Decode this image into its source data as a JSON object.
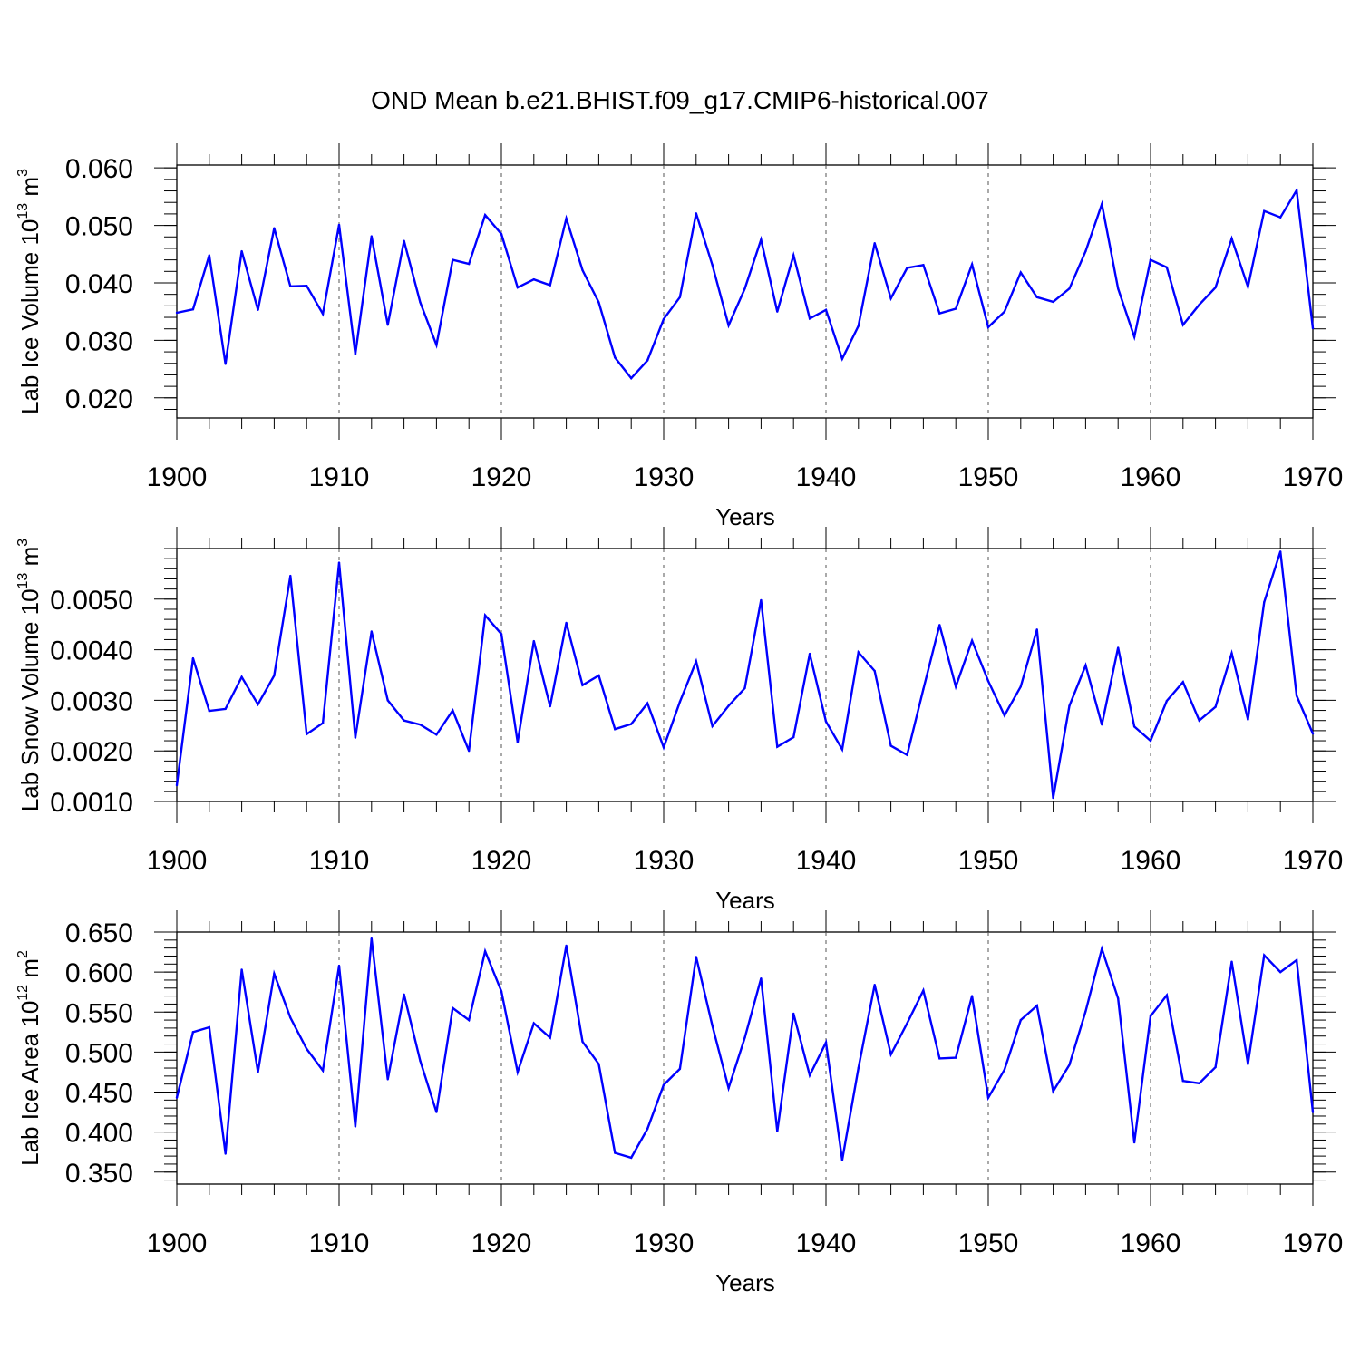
{
  "title": "OND Mean b.e21.BHIST.f09_g17.CMIP6-historical.007",
  "chart_data": [
    {
      "type": "line",
      "ylabel": {
        "text": "Lab Ice Volume 10",
        "sup": "13",
        "unit": " m",
        "unit_sup": "3"
      },
      "xlabel": "Years",
      "xlim": [
        1900,
        1970
      ],
      "ylim": [
        0.0165,
        0.0605
      ],
      "xticks": [
        1900,
        1910,
        1920,
        1930,
        1940,
        1950,
        1960,
        1970
      ],
      "xtick_labels": [
        "1900",
        "1910",
        "1920",
        "1930",
        "1940",
        "1950",
        "1960",
        "1970"
      ],
      "yticks": [
        0.02,
        0.03,
        0.04,
        0.05,
        0.06
      ],
      "ytick_labels": [
        "0.020",
        "0.030",
        "0.040",
        "0.050",
        "0.060"
      ],
      "yminor_step": 0.002,
      "x": [
        1900,
        1901,
        1902,
        1903,
        1904,
        1905,
        1906,
        1907,
        1908,
        1909,
        1910,
        1911,
        1912,
        1913,
        1914,
        1915,
        1916,
        1917,
        1918,
        1919,
        1920,
        1921,
        1922,
        1923,
        1924,
        1925,
        1926,
        1927,
        1928,
        1929,
        1930,
        1931,
        1932,
        1933,
        1934,
        1935,
        1936,
        1937,
        1938,
        1939,
        1940,
        1941,
        1942,
        1943,
        1944,
        1945,
        1946,
        1947,
        1948,
        1949,
        1950,
        1951,
        1952,
        1953,
        1954,
        1955,
        1956,
        1957,
        1958,
        1959,
        1960,
        1961,
        1962,
        1963,
        1964,
        1965,
        1966,
        1967,
        1968,
        1969,
        1970
      ],
      "values": [
        0.0348,
        0.0354,
        0.0448,
        0.0259,
        0.0455,
        0.0353,
        0.0495,
        0.0394,
        0.0395,
        0.0346,
        0.0501,
        0.0276,
        0.0481,
        0.0327,
        0.0473,
        0.0366,
        0.0292,
        0.044,
        0.0433,
        0.0518,
        0.0485,
        0.0392,
        0.0406,
        0.0396,
        0.0512,
        0.0422,
        0.0366,
        0.027,
        0.0234,
        0.0265,
        0.0337,
        0.0375,
        0.0521,
        0.0431,
        0.0326,
        0.039,
        0.0475,
        0.035,
        0.0448,
        0.0338,
        0.0353,
        0.0268,
        0.0325,
        0.0469,
        0.0373,
        0.0426,
        0.0431,
        0.0347,
        0.0355,
        0.0432,
        0.0323,
        0.035,
        0.0418,
        0.0375,
        0.0367,
        0.039,
        0.0455,
        0.0537,
        0.039,
        0.0306,
        0.044,
        0.0427,
        0.0327,
        0.0362,
        0.0392,
        0.0477,
        0.0393,
        0.0525,
        0.0514,
        0.0561,
        0.0321
      ],
      "color": "#0000ff"
    },
    {
      "type": "line",
      "ylabel": {
        "text": "Lab Snow Volume 10",
        "sup": "13",
        "unit": " m",
        "unit_sup": "3"
      },
      "xlabel": "Years",
      "xlim": [
        1900,
        1970
      ],
      "ylim": [
        0.001,
        0.006
      ],
      "xticks": [
        1900,
        1910,
        1920,
        1930,
        1940,
        1950,
        1960,
        1970
      ],
      "xtick_labels": [
        "1900",
        "1910",
        "1920",
        "1930",
        "1940",
        "1950",
        "1960",
        "1970"
      ],
      "yticks": [
        0.001,
        0.002,
        0.003,
        0.004,
        0.005
      ],
      "ytick_labels": [
        "0.0010",
        "0.0020",
        "0.0030",
        "0.0040",
        "0.0050"
      ],
      "yminor_step": 0.0002,
      "x": [
        1900,
        1901,
        1902,
        1903,
        1904,
        1905,
        1906,
        1907,
        1908,
        1909,
        1910,
        1911,
        1912,
        1913,
        1914,
        1915,
        1916,
        1917,
        1918,
        1919,
        1920,
        1921,
        1922,
        1923,
        1924,
        1925,
        1926,
        1927,
        1928,
        1929,
        1930,
        1931,
        1932,
        1933,
        1934,
        1935,
        1936,
        1937,
        1938,
        1939,
        1940,
        1941,
        1942,
        1943,
        1944,
        1945,
        1946,
        1947,
        1948,
        1949,
        1950,
        1951,
        1952,
        1953,
        1954,
        1955,
        1956,
        1957,
        1958,
        1959,
        1960,
        1961,
        1962,
        1963,
        1964,
        1965,
        1966,
        1967,
        1968,
        1969,
        1970
      ],
      "values": [
        0.00132,
        0.00383,
        0.00279,
        0.00283,
        0.00346,
        0.00292,
        0.00349,
        0.00546,
        0.00233,
        0.00255,
        0.00572,
        0.00226,
        0.00436,
        0.003,
        0.0026,
        0.00252,
        0.00232,
        0.0028,
        0.002,
        0.00468,
        0.00431,
        0.00217,
        0.00417,
        0.00288,
        0.00453,
        0.0033,
        0.00349,
        0.00243,
        0.00253,
        0.00294,
        0.00207,
        0.00297,
        0.00377,
        0.00249,
        0.00289,
        0.00324,
        0.00498,
        0.00208,
        0.00227,
        0.00392,
        0.00258,
        0.00203,
        0.00395,
        0.00358,
        0.0021,
        0.00192,
        0.00322,
        0.00449,
        0.00327,
        0.00418,
        0.00338,
        0.0027,
        0.00327,
        0.0044,
        0.00107,
        0.00289,
        0.00369,
        0.00252,
        0.00404,
        0.00248,
        0.0022,
        0.00299,
        0.00336,
        0.0026,
        0.00287,
        0.00393,
        0.00262,
        0.00494,
        0.00594,
        0.00309,
        0.00234
      ],
      "color": "#0000ff"
    },
    {
      "type": "line",
      "ylabel": {
        "text": "Lab Ice Area 10",
        "sup": "12",
        "unit": " m",
        "unit_sup": "2"
      },
      "xlabel": "Years",
      "xlim": [
        1900,
        1970
      ],
      "ylim": [
        0.335,
        0.65
      ],
      "xticks": [
        1900,
        1910,
        1920,
        1930,
        1940,
        1950,
        1960,
        1970
      ],
      "xtick_labels": [
        "1900",
        "1910",
        "1920",
        "1930",
        "1940",
        "1950",
        "1960",
        "1970"
      ],
      "yticks": [
        0.35,
        0.4,
        0.45,
        0.5,
        0.55,
        0.6,
        0.65
      ],
      "ytick_labels": [
        "0.350",
        "0.400",
        "0.450",
        "0.500",
        "0.550",
        "0.600",
        "0.650"
      ],
      "yminor_step": 0.01,
      "x": [
        1900,
        1901,
        1902,
        1903,
        1904,
        1905,
        1906,
        1907,
        1908,
        1909,
        1910,
        1911,
        1912,
        1913,
        1914,
        1915,
        1916,
        1917,
        1918,
        1919,
        1920,
        1921,
        1922,
        1923,
        1924,
        1925,
        1926,
        1927,
        1928,
        1929,
        1930,
        1931,
        1932,
        1933,
        1934,
        1935,
        1936,
        1937,
        1938,
        1939,
        1940,
        1941,
        1942,
        1943,
        1944,
        1945,
        1946,
        1947,
        1948,
        1949,
        1950,
        1951,
        1952,
        1953,
        1954,
        1955,
        1956,
        1957,
        1958,
        1959,
        1960,
        1961,
        1962,
        1963,
        1964,
        1965,
        1966,
        1967,
        1968,
        1969,
        1970
      ],
      "values": [
        0.443,
        0.525,
        0.531,
        0.373,
        0.603,
        0.475,
        0.598,
        0.543,
        0.504,
        0.477,
        0.608,
        0.407,
        0.642,
        0.466,
        0.572,
        0.489,
        0.425,
        0.555,
        0.54,
        0.626,
        0.576,
        0.475,
        0.536,
        0.518,
        0.633,
        0.513,
        0.485,
        0.374,
        0.368,
        0.404,
        0.459,
        0.479,
        0.619,
        0.533,
        0.455,
        0.518,
        0.592,
        0.401,
        0.548,
        0.471,
        0.512,
        0.365,
        0.48,
        0.584,
        0.497,
        0.536,
        0.577,
        0.492,
        0.493,
        0.57,
        0.443,
        0.478,
        0.54,
        0.558,
        0.451,
        0.484,
        0.551,
        0.629,
        0.567,
        0.387,
        0.545,
        0.571,
        0.464,
        0.461,
        0.481,
        0.613,
        0.485,
        0.621,
        0.6,
        0.615,
        0.425
      ],
      "color": "#0000ff"
    }
  ]
}
